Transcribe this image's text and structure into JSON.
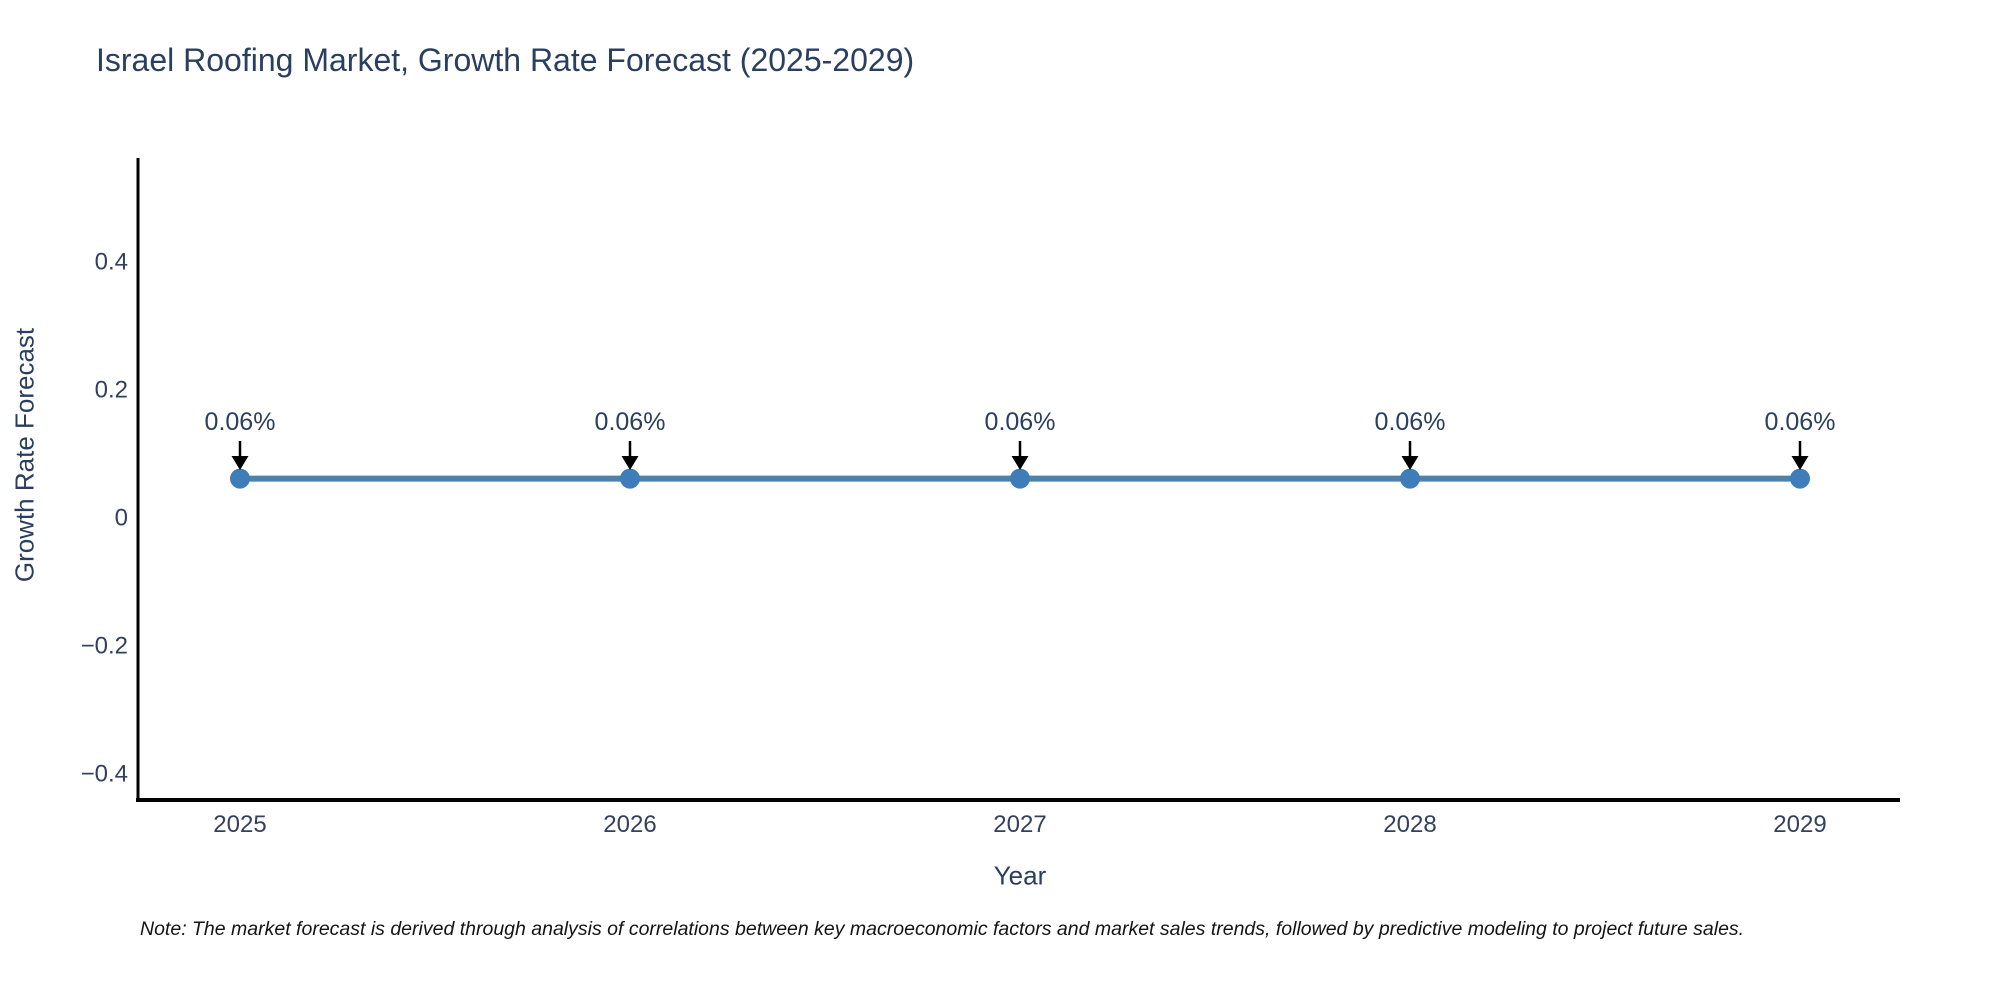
{
  "chart_data": {
    "type": "line",
    "title": "Israel Roofing Market, Growth Rate Forecast (2025-2029)",
    "xlabel": "Year",
    "ylabel": "Growth Rate Forecast",
    "x": [
      2025,
      2026,
      2027,
      2028,
      2029
    ],
    "series": [
      {
        "name": "Growth Rate Forecast",
        "values": [
          0.06,
          0.06,
          0.06,
          0.06,
          0.06
        ]
      }
    ],
    "point_labels": [
      "0.06%",
      "0.06%",
      "0.06%",
      "0.06%",
      "0.06%"
    ],
    "xtick_labels": [
      "2025",
      "2026",
      "2027",
      "2028",
      "2029"
    ],
    "ytick_values": [
      0.4,
      0.2,
      0,
      -0.2,
      -0.4
    ],
    "ytick_labels": [
      "0.4",
      "0.2",
      "0",
      "−0.2",
      "−0.4"
    ],
    "ylim": [
      -0.45,
      0.56
    ],
    "grid": false,
    "legend": false,
    "colors": {
      "line": "#4f81ab",
      "marker": "#3e7db9",
      "arrow": "#000000",
      "axis": "#000000",
      "title_text": "#2a3f5f",
      "tick_text": "#34415c"
    }
  },
  "note": {
    "text": "Note: The market forecast is derived through analysis of correlations between key macroeconomic factors and market sales trends, followed by predictive modeling to project future sales."
  }
}
